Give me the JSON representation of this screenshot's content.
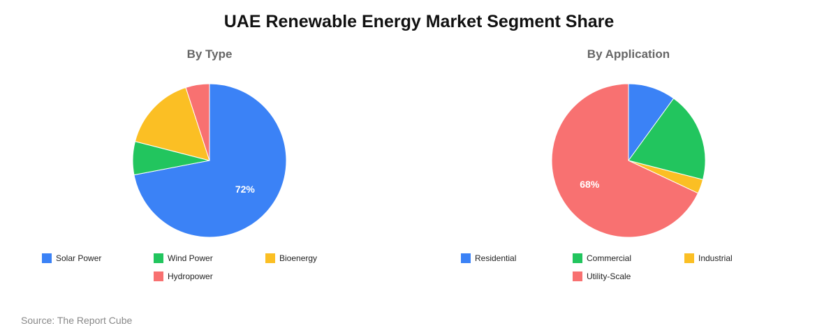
{
  "title": "UAE Renewable Energy Market Segment Share",
  "source": "Source: The Report Cube",
  "chart_data": [
    {
      "type": "pie",
      "title": "By Type",
      "labels": [
        "Solar Power",
        "Wind Power",
        "Bioenergy",
        "Hydropower"
      ],
      "values": [
        72,
        7,
        16,
        5
      ],
      "colors": [
        "#3b82f6",
        "#22c55e",
        "#fbbf24",
        "#f87171"
      ],
      "data_labels": [
        "72%",
        "",
        "",
        ""
      ],
      "legend_position": "bottom"
    },
    {
      "type": "pie",
      "title": "By Application",
      "labels": [
        "Residential",
        "Commercial",
        "Industrial",
        "Utility-Scale"
      ],
      "values": [
        10,
        19,
        3,
        68
      ],
      "colors": [
        "#3b82f6",
        "#22c55e",
        "#fbbf24",
        "#f87171"
      ],
      "data_labels": [
        "",
        "",
        "",
        "68%"
      ],
      "legend_position": "bottom"
    }
  ]
}
